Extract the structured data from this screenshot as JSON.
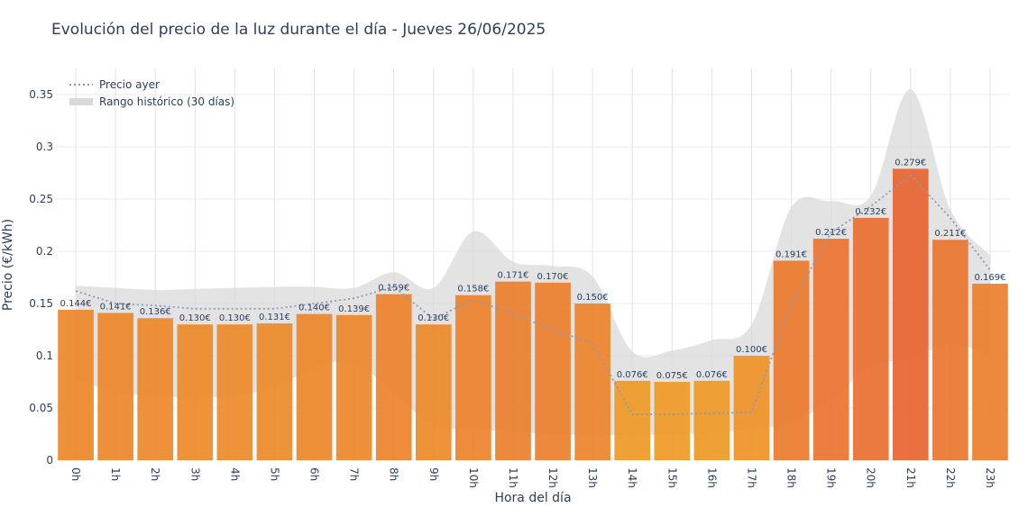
{
  "chart_data": {
    "type": "bar",
    "title": "Evolución del precio de la luz durante el día - Jueves 26/06/2025",
    "xlabel": "Hora del día",
    "ylabel": "Precio (€/kWh)",
    "ylim": [
      0,
      0.375
    ],
    "yticks": [
      "0",
      "0.05",
      "0.1",
      "0.15",
      "0.2",
      "0.25",
      "0.3",
      "0.35"
    ],
    "categories": [
      "0h",
      "1h",
      "2h",
      "3h",
      "4h",
      "5h",
      "6h",
      "7h",
      "8h",
      "9h",
      "10h",
      "11h",
      "12h",
      "13h",
      "14h",
      "15h",
      "16h",
      "17h",
      "18h",
      "19h",
      "20h",
      "21h",
      "22h",
      "23h"
    ],
    "values": [
      0.144,
      0.141,
      0.136,
      0.13,
      0.13,
      0.131,
      0.14,
      0.139,
      0.159,
      0.13,
      0.158,
      0.171,
      0.17,
      0.15,
      0.076,
      0.075,
      0.076,
      0.1,
      0.191,
      0.212,
      0.232,
      0.279,
      0.211,
      0.169
    ],
    "value_labels": [
      "0.144€",
      "0.141€",
      "0.136€",
      "0.130€",
      "0.130€",
      "0.131€",
      "0.140€",
      "0.139€",
      "0.159€",
      "0.130€",
      "0.158€",
      "0.171€",
      "0.170€",
      "0.150€",
      "0.076€",
      "0.075€",
      "0.076€",
      "0.100€",
      "0.191€",
      "0.212€",
      "0.232€",
      "0.279€",
      "0.211€",
      "0.169€"
    ],
    "series": [
      {
        "name": "Precio ayer",
        "type": "line",
        "style": "dotted",
        "color": "#8c9ab5",
        "values": [
          0.162,
          0.15,
          0.148,
          0.145,
          0.145,
          0.145,
          0.15,
          0.155,
          0.166,
          0.135,
          0.154,
          0.14,
          0.125,
          0.112,
          0.044,
          0.044,
          0.045,
          0.046,
          0.15,
          0.218,
          0.243,
          0.273,
          0.232,
          0.182
        ]
      },
      {
        "name": "Rango histórico (30 días)",
        "type": "area-band",
        "color": "#d9d9d9",
        "upper": [
          0.167,
          0.165,
          0.163,
          0.164,
          0.165,
          0.166,
          0.166,
          0.165,
          0.18,
          0.165,
          0.219,
          0.19,
          0.186,
          0.176,
          0.104,
          0.105,
          0.115,
          0.13,
          0.242,
          0.248,
          0.253,
          0.355,
          0.24,
          0.196
        ],
        "lower": [
          0.078,
          0.065,
          0.062,
          0.06,
          0.062,
          0.07,
          0.088,
          0.094,
          0.064,
          0.033,
          0.03,
          0.027,
          0.025,
          0.024,
          0.024,
          0.025,
          0.026,
          0.03,
          0.036,
          0.058,
          0.09,
          0.097,
          0.112,
          0.1
        ]
      }
    ],
    "legend": {
      "placement": "top-left",
      "entries": [
        "Precio ayer",
        "Rango histórico (30 días)"
      ]
    },
    "grid": true,
    "colors": {
      "bar_low": "#f2b519",
      "bar_high": "#e8612e",
      "text": "#2a3f5f",
      "grid": "#ebebeb",
      "band": "#d9d9d9",
      "line": "#8c9ab5"
    }
  }
}
